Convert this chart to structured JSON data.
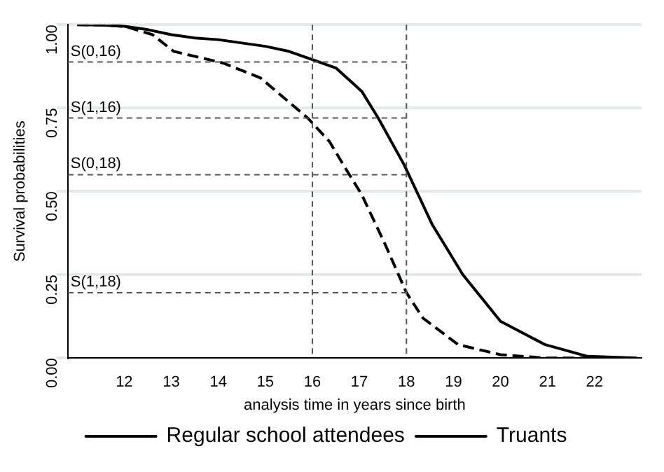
{
  "chart_data": {
    "type": "line",
    "xlabel": "analysis time in years since birth",
    "ylabel": "Survival probabilities",
    "xlim": [
      10.8,
      23
    ],
    "xticks": [
      12,
      13,
      14,
      15,
      16,
      17,
      18,
      19,
      20,
      21,
      22
    ],
    "ylim": [
      0,
      1
    ],
    "yticks": [
      {
        "value": 0,
        "label": "0.00"
      },
      0.25,
      {
        "value": 0.5,
        "label": "0.50"
      },
      0.75,
      {
        "value": 1,
        "label": "1.00"
      }
    ],
    "grid": "y",
    "legend": "bottom",
    "series": [
      {
        "name": "Regular school attendees",
        "color": "#000000",
        "line_style": "solid",
        "x": [
          11,
          11.5,
          12,
          12.5,
          13,
          13.5,
          14,
          14.5,
          15,
          15.5,
          16,
          16.5,
          17.05,
          17.4,
          17.95,
          18.55,
          19.2,
          20,
          20.95,
          21.85,
          22.9
        ],
        "values": [
          1,
          0.999,
          0.995,
          0.985,
          0.97,
          0.96,
          0.955,
          0.945,
          0.935,
          0.92,
          0.895,
          0.87,
          0.8,
          0.72,
          0.58,
          0.4,
          0.25,
          0.11,
          0.04,
          0.005,
          0
        ]
      },
      {
        "name": "Truants",
        "color": "#000000",
        "line_style": "dashed",
        "x": [
          11,
          11.5,
          12,
          12.2,
          12.6,
          13.05,
          14.1,
          14.9,
          15.9,
          16.36,
          16.7,
          17.05,
          17.55,
          18,
          18.35,
          19.1,
          20,
          20.95,
          22.5
        ],
        "values": [
          1,
          0.999,
          0.995,
          0.987,
          0.97,
          0.92,
          0.885,
          0.84,
          0.72,
          0.65,
          0.57,
          0.49,
          0.34,
          0.196,
          0.12,
          0.04,
          0.01,
          0,
          0
        ]
      }
    ],
    "ref_lines": [
      {
        "axis": "x",
        "value": 16,
        "line_style": "dashed"
      },
      {
        "axis": "x",
        "value": 18,
        "line_style": "dashed"
      },
      {
        "axis": "y",
        "value": 0.888,
        "label": "S(0,16)",
        "line_style": "dashed"
      },
      {
        "axis": "y",
        "value": 0.72,
        "label": "S(1,16)",
        "line_style": "dashed"
      },
      {
        "axis": "y",
        "value": 0.55,
        "label": "S(0,18)",
        "line_style": "dashed"
      },
      {
        "axis": "y",
        "value": 0.196,
        "label": "S(1,18)",
        "line_style": "dashed"
      }
    ]
  }
}
